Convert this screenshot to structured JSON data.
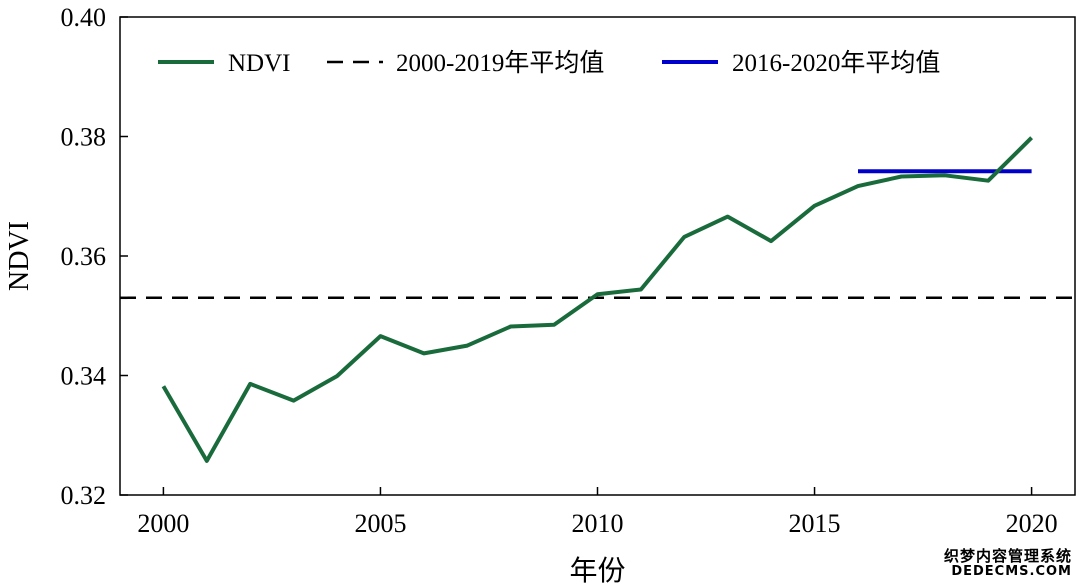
{
  "chart_data": {
    "type": "line",
    "title": "",
    "xlabel": "年份",
    "ylabel": "NDVI",
    "xlim": [
      1999.0,
      2021.0
    ],
    "ylim": [
      0.32,
      0.4
    ],
    "xticks": [
      2000,
      2005,
      2010,
      2015,
      2020
    ],
    "yticks": [
      0.32,
      0.34,
      0.36,
      0.38,
      0.4
    ],
    "ytick_labels": [
      "0.32",
      "0.34",
      "0.36",
      "0.38",
      "0.40"
    ],
    "legend_position": "top",
    "series": [
      {
        "name": "NDVI",
        "color": "#1a6b3c",
        "style": "solid",
        "x": [
          2000,
          2001,
          2002,
          2003,
          2004,
          2005,
          2006,
          2007,
          2008,
          2009,
          2010,
          2011,
          2012,
          2013,
          2014,
          2015,
          2016,
          2017,
          2018,
          2019,
          2020
        ],
        "y": [
          0.3382,
          0.3257,
          0.3386,
          0.3358,
          0.3399,
          0.3466,
          0.3437,
          0.345,
          0.3482,
          0.3485,
          0.3536,
          0.3544,
          0.3632,
          0.3666,
          0.3625,
          0.3684,
          0.3717,
          0.3733,
          0.3735,
          0.3726,
          0.3798
        ]
      },
      {
        "name": "2000-2019年平均值",
        "color": "#000000",
        "style": "dashed",
        "x": [
          1999.0,
          2021.0
        ],
        "y": [
          0.353,
          0.353
        ]
      },
      {
        "name": "2016-2020年平均值",
        "color": "#0000cc",
        "style": "solid",
        "x": [
          2016,
          2020
        ],
        "y": [
          0.3742,
          0.3742
        ]
      }
    ]
  },
  "watermark": {
    "line1": "织梦内容管理系统",
    "line2": "DEDECMS.COM"
  }
}
